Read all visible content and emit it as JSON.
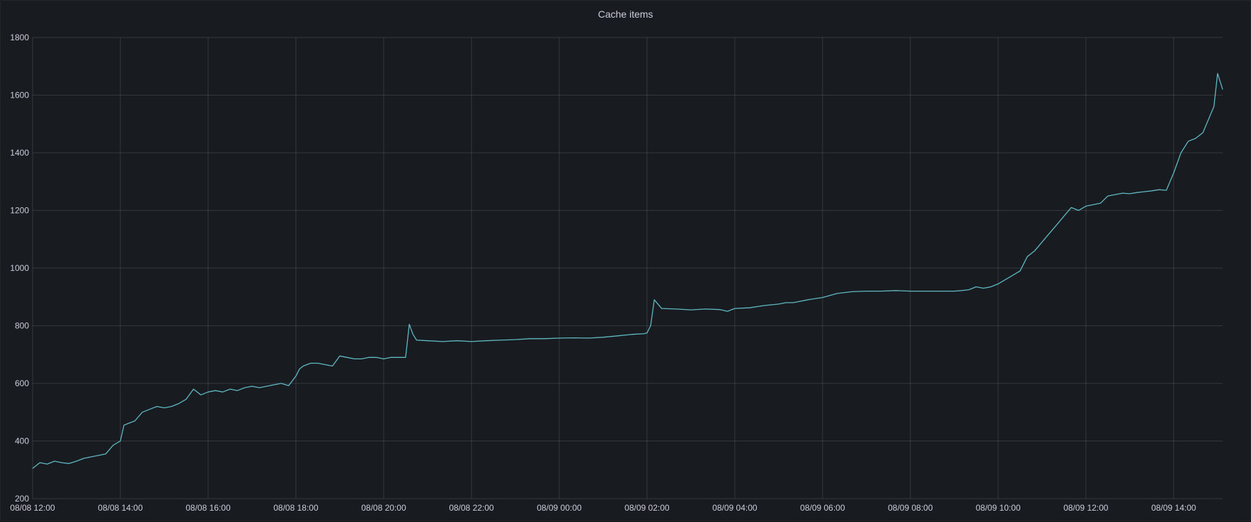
{
  "panel": {
    "title": "Cache items"
  },
  "chart_data": {
    "type": "line",
    "title": "Cache items",
    "xlabel": "",
    "ylabel": "",
    "x_tick_labels": [
      "08/08 12:00",
      "08/08 14:00",
      "08/08 16:00",
      "08/08 18:00",
      "08/08 20:00",
      "08/08 22:00",
      "08/09 00:00",
      "08/09 02:00",
      "08/09 04:00",
      "08/09 06:00",
      "08/09 08:00",
      "08/09 10:00",
      "08/09 12:00",
      "08/09 14:00"
    ],
    "y_tick_labels": [
      "200",
      "400",
      "600",
      "800",
      "1000",
      "1200",
      "1400",
      "1600",
      "1800"
    ],
    "ylim": [
      200,
      1800
    ],
    "xlim": [
      "08/08 12:00",
      "08/09 15:07"
    ],
    "grid": true,
    "legend": "none",
    "series_color": "#5fb8c2",
    "series": [
      {
        "name": "",
        "x": [
          "08/08 12:00",
          "08/08 12:10",
          "08/08 12:20",
          "08/08 12:30",
          "08/08 12:40",
          "08/08 12:50",
          "08/08 13:00",
          "08/08 13:10",
          "08/08 13:20",
          "08/08 13:30",
          "08/08 13:40",
          "08/08 13:50",
          "08/08 14:00",
          "08/08 14:05",
          "08/08 14:10",
          "08/08 14:20",
          "08/08 14:30",
          "08/08 14:40",
          "08/08 14:50",
          "08/08 15:00",
          "08/08 15:10",
          "08/08 15:20",
          "08/08 15:30",
          "08/08 15:40",
          "08/08 15:50",
          "08/08 16:00",
          "08/08 16:10",
          "08/08 16:20",
          "08/08 16:30",
          "08/08 16:40",
          "08/08 16:50",
          "08/08 17:00",
          "08/08 17:10",
          "08/08 17:20",
          "08/08 17:30",
          "08/08 17:40",
          "08/08 17:50",
          "08/08 18:00",
          "08/08 18:05",
          "08/08 18:10",
          "08/08 18:20",
          "08/08 18:30",
          "08/08 18:40",
          "08/08 18:50",
          "08/08 19:00",
          "08/08 19:10",
          "08/08 19:20",
          "08/08 19:30",
          "08/08 19:40",
          "08/08 19:50",
          "08/08 20:00",
          "08/08 20:10",
          "08/08 20:20",
          "08/08 20:30",
          "08/08 20:35",
          "08/08 20:40",
          "08/08 20:45",
          "08/08 21:00",
          "08/08 21:20",
          "08/08 21:40",
          "08/08 22:00",
          "08/08 22:20",
          "08/08 22:40",
          "08/08 23:00",
          "08/08 23:20",
          "08/08 23:40",
          "08/09 00:00",
          "08/09 00:20",
          "08/09 00:40",
          "08/09 01:00",
          "08/09 01:20",
          "08/09 01:40",
          "08/09 01:55",
          "08/09 02:00",
          "08/09 02:05",
          "08/09 02:10",
          "08/09 02:20",
          "08/09 02:40",
          "08/09 03:00",
          "08/09 03:20",
          "08/09 03:40",
          "08/09 03:50",
          "08/09 04:00",
          "08/09 04:20",
          "08/09 04:40",
          "08/09 05:00",
          "08/09 05:10",
          "08/09 05:20",
          "08/09 05:40",
          "08/09 06:00",
          "08/09 06:20",
          "08/09 06:40",
          "08/09 07:00",
          "08/09 07:20",
          "08/09 07:40",
          "08/09 08:00",
          "08/09 08:20",
          "08/09 08:40",
          "08/09 09:00",
          "08/09 09:10",
          "08/09 09:20",
          "08/09 09:30",
          "08/09 09:40",
          "08/09 09:50",
          "08/09 10:00",
          "08/09 10:10",
          "08/09 10:20",
          "08/09 10:30",
          "08/09 10:40",
          "08/09 10:50",
          "08/09 11:00",
          "08/09 11:10",
          "08/09 11:20",
          "08/09 11:30",
          "08/09 11:40",
          "08/09 11:50",
          "08/09 12:00",
          "08/09 12:10",
          "08/09 12:20",
          "08/09 12:30",
          "08/09 12:40",
          "08/09 12:50",
          "08/09 13:00",
          "08/09 13:10",
          "08/09 13:20",
          "08/09 13:30",
          "08/09 13:40",
          "08/09 13:50",
          "08/09 14:00",
          "08/09 14:10",
          "08/09 14:20",
          "08/09 14:30",
          "08/09 14:40",
          "08/09 14:50",
          "08/09 14:55",
          "08/09 15:00",
          "08/09 15:07"
        ],
        "values": [
          305,
          325,
          320,
          330,
          325,
          322,
          330,
          340,
          345,
          350,
          355,
          385,
          400,
          455,
          460,
          470,
          500,
          510,
          520,
          515,
          520,
          530,
          545,
          580,
          560,
          570,
          575,
          570,
          580,
          575,
          585,
          590,
          585,
          590,
          595,
          600,
          592,
          625,
          650,
          660,
          670,
          670,
          665,
          660,
          695,
          690,
          685,
          685,
          690,
          690,
          685,
          690,
          690,
          690,
          805,
          770,
          750,
          748,
          745,
          748,
          745,
          748,
          750,
          752,
          755,
          755,
          757,
          758,
          757,
          760,
          765,
          770,
          772,
          775,
          800,
          890,
          860,
          858,
          855,
          858,
          856,
          850,
          860,
          862,
          870,
          875,
          880,
          880,
          890,
          898,
          912,
          918,
          920,
          920,
          922,
          920,
          920,
          920,
          920,
          922,
          925,
          935,
          930,
          935,
          945,
          960,
          975,
          990,
          1040,
          1060,
          1090,
          1120,
          1150,
          1180,
          1210,
          1200,
          1215,
          1220,
          1225,
          1250,
          1255,
          1260,
          1258,
          1262,
          1265,
          1268,
          1272,
          1270,
          1330,
          1400,
          1440,
          1450,
          1470,
          1530,
          1560,
          1675,
          1620
        ]
      }
    ]
  }
}
